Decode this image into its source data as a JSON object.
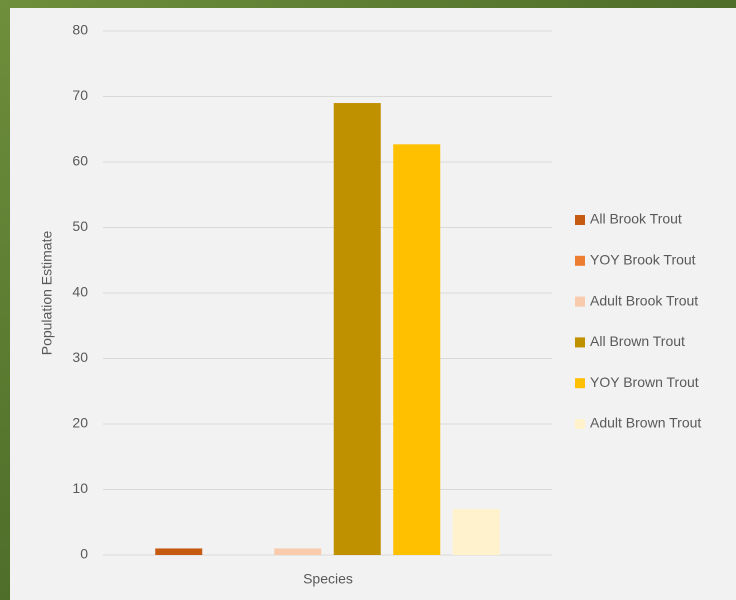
{
  "chart_data": {
    "type": "bar",
    "x_label": "Species",
    "y_label": "Population Estimate",
    "categories": [
      null
    ],
    "series": [
      {
        "name": "All Brook Trout",
        "color": "#c55a11",
        "values": [
          1
        ]
      },
      {
        "name": "YOY Brook Trout",
        "color": "#ed7d31",
        "values": [
          0
        ]
      },
      {
        "name": "Adult Brook Trout",
        "color": "#f8cbad",
        "values": [
          1
        ]
      },
      {
        "name": "All Brown Trout",
        "color": "#bf9000",
        "values": [
          69
        ]
      },
      {
        "name": "YOY Brown Trout",
        "color": "#ffc000",
        "values": [
          62.7
        ]
      },
      {
        "name": "Adult Brown Trout",
        "color": "#fff2cc",
        "values": [
          7
        ]
      }
    ],
    "ylim": [
      0,
      80
    ],
    "yticks": [
      0,
      10,
      20,
      30,
      40,
      50,
      60,
      70,
      80
    ],
    "grid": true,
    "legend": "right"
  }
}
